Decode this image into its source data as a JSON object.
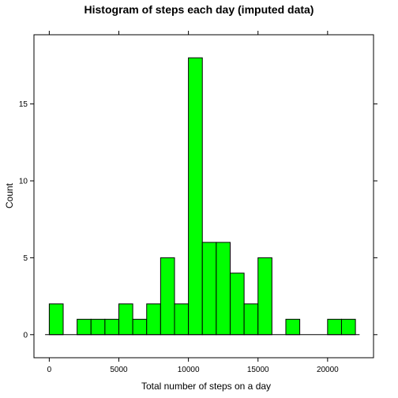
{
  "chart_data": {
    "type": "bar",
    "title": "Histogram of steps each day (imputed data)",
    "xlabel": "Total number of steps on a day",
    "ylabel": "Count",
    "xlim": [
      -1100,
      23300
    ],
    "ylim": [
      -1.5,
      19.5
    ],
    "bin_width": 1000,
    "bin_starts": [
      0,
      1000,
      2000,
      3000,
      4000,
      5000,
      6000,
      7000,
      8000,
      9000,
      10000,
      11000,
      12000,
      13000,
      14000,
      15000,
      16000,
      17000,
      18000,
      19000,
      20000,
      21000
    ],
    "counts": [
      2,
      0,
      1,
      1,
      1,
      2,
      1,
      2,
      5,
      2,
      18,
      6,
      6,
      4,
      2,
      5,
      0,
      1,
      0,
      0,
      1,
      1
    ],
    "x_ticks": [
      0,
      5000,
      10000,
      15000,
      20000
    ],
    "x_tick_labels": [
      "0",
      "5000",
      "10000",
      "15000",
      "20000"
    ],
    "y_ticks": [
      0,
      5,
      10,
      15
    ],
    "y_tick_labels": [
      "0",
      "5",
      "10",
      "15"
    ],
    "bar_color": "#00ff00",
    "grid": false
  }
}
